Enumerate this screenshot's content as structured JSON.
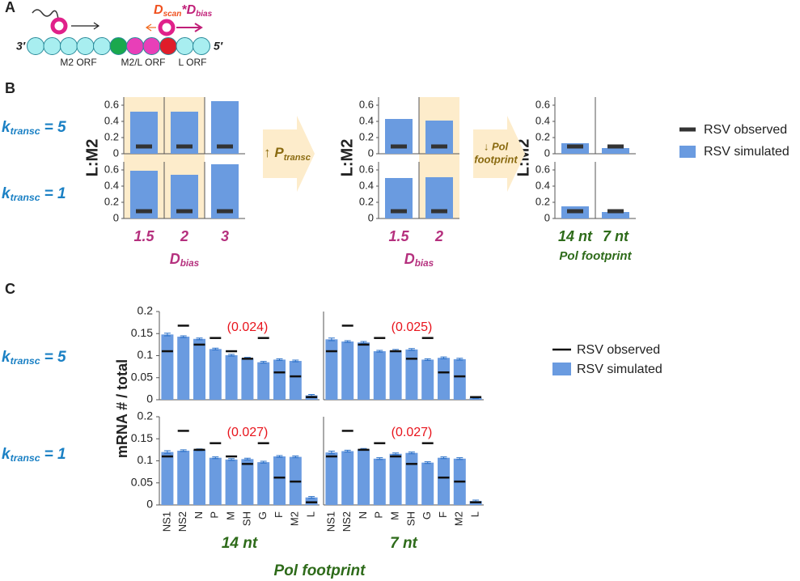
{
  "panel_labels": [
    "A",
    "B",
    "C"
  ],
  "diagram": {
    "end_3": "3′",
    "end_5": "5′",
    "orfs": [
      "M2 ORF",
      "M2/L ORF",
      "L ORF"
    ],
    "formula": [
      "D",
      "scan",
      "*D",
      "bias"
    ]
  },
  "chart_data": [
    {
      "type": "bar",
      "ylabel": "L:M2",
      "ylim": [
        0,
        0.7
      ],
      "yticks": [
        0,
        0.2,
        0.4,
        0.6
      ],
      "series": [
        {
          "name": "RSV observed",
          "color": "#333333"
        },
        {
          "name": "RSV simulated",
          "color": "#6a9be0"
        }
      ],
      "rows": [
        [
          "k",
          "transc",
          "= 5"
        ],
        [
          "k",
          "transc",
          "= 1"
        ]
      ],
      "row_color": "#1a80c4",
      "highlight_color": "#fdeccb",
      "arrows": [
        [
          "↑ P",
          "transc"
        ],
        [
          "↓ Pol",
          "footprint"
        ]
      ],
      "groups": [
        {
          "categories": [
            "1.5",
            "2",
            "3"
          ],
          "xlabel": [
            "D",
            "bias"
          ],
          "label_color": "#b5307e",
          "highlighted": [
            true,
            true,
            false
          ],
          "observed": [
            [
              0.09,
              0.09,
              0.09
            ],
            [
              0.09,
              0.09,
              0.09
            ]
          ],
          "simulated": [
            [
              0.52,
              0.52,
              0.65
            ],
            [
              0.59,
              0.54,
              0.67
            ]
          ]
        },
        {
          "categories": [
            "1.5",
            "2"
          ],
          "xlabel": [
            "D",
            "bias"
          ],
          "label_color": "#b5307e",
          "highlighted": [
            false,
            true
          ],
          "observed": [
            [
              0.09,
              0.09
            ],
            [
              0.09,
              0.09
            ]
          ],
          "simulated": [
            [
              0.43,
              0.41
            ],
            [
              0.5,
              0.51
            ]
          ]
        },
        {
          "categories": [
            "14 nt",
            "7 nt"
          ],
          "xlabel": [
            "Pol footprint"
          ],
          "label_color": "#2e6b1a",
          "highlighted": [
            false,
            false
          ],
          "observed": [
            [
              0.09,
              0.09
            ],
            [
              0.09,
              0.09
            ]
          ],
          "simulated": [
            [
              0.13,
              0.07
            ],
            [
              0.15,
              0.08
            ]
          ]
        }
      ]
    },
    {
      "type": "bar",
      "ylabel": "mRNA # / total",
      "ylim": [
        0,
        0.2
      ],
      "yticks": [
        0,
        0.05,
        0.1,
        0.15,
        0.2
      ],
      "series": [
        {
          "name": "RSV observed",
          "color": "#111111"
        },
        {
          "name": "RSV simulated",
          "color": "#6a9be0"
        }
      ],
      "rows": [
        [
          "k",
          "transc",
          "= 5"
        ],
        [
          "k",
          "transc",
          "= 1"
        ]
      ],
      "row_color": "#1a80c4",
      "categories": [
        "NS1",
        "NS2",
        "N",
        "P",
        "M",
        "SH",
        "G",
        "F",
        "M2",
        "L"
      ],
      "columns": [
        "14 nt",
        "7 nt"
      ],
      "column_color": "#2e6b1a",
      "xlabel": "Pol footprint",
      "annotation_color": "#e8141c",
      "observed": [
        0.11,
        0.168,
        0.125,
        0.14,
        0.11,
        0.093,
        0.14,
        0.062,
        0.053,
        0.006
      ],
      "panels": [
        [
          {
            "annotation": "(0.024)",
            "values": [
              0.148,
              0.143,
              0.138,
              0.115,
              0.101,
              0.094,
              0.085,
              0.091,
              0.088,
              0.01
            ],
            "errors": [
              0.003,
              0.002,
              0.002,
              0.002,
              0.002,
              0.002,
              0.002,
              0.002,
              0.002,
              0.002
            ]
          },
          {
            "annotation": "(0.025)",
            "values": [
              0.137,
              0.132,
              0.13,
              0.11,
              0.112,
              0.114,
              0.091,
              0.095,
              0.092,
              0.004
            ],
            "errors": [
              0.003,
              0.002,
              0.002,
              0.002,
              0.002,
              0.002,
              0.002,
              0.002,
              0.002,
              0.001
            ]
          }
        ],
        [
          {
            "annotation": "(0.027)",
            "values": [
              0.12,
              0.123,
              0.125,
              0.107,
              0.103,
              0.104,
              0.097,
              0.11,
              0.109,
              0.017
            ],
            "errors": [
              0.003,
              0.002,
              0.002,
              0.002,
              0.002,
              0.002,
              0.002,
              0.002,
              0.002,
              0.002
            ]
          },
          {
            "annotation": "(0.027)",
            "values": [
              0.119,
              0.122,
              0.126,
              0.105,
              0.116,
              0.118,
              0.096,
              0.107,
              0.105,
              0.009
            ],
            "errors": [
              0.003,
              0.002,
              0.002,
              0.002,
              0.002,
              0.002,
              0.002,
              0.002,
              0.002,
              0.002
            ]
          }
        ]
      ]
    }
  ]
}
